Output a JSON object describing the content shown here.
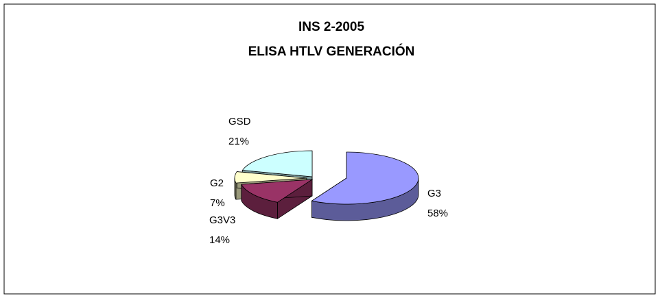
{
  "chart_data": {
    "type": "pie3d",
    "title": "INS 2-2005",
    "subtitle": "ELISA  HTLV GENERACIÓN",
    "categories": [
      "G3",
      "G3V3",
      "G2",
      "GSD"
    ],
    "values": [
      58,
      14,
      7,
      21
    ],
    "value_labels": [
      "58%",
      "14%",
      "7%",
      "21%"
    ],
    "colors": [
      "#9999ff",
      "#993366",
      "#ffffcc",
      "#ccffff"
    ]
  }
}
